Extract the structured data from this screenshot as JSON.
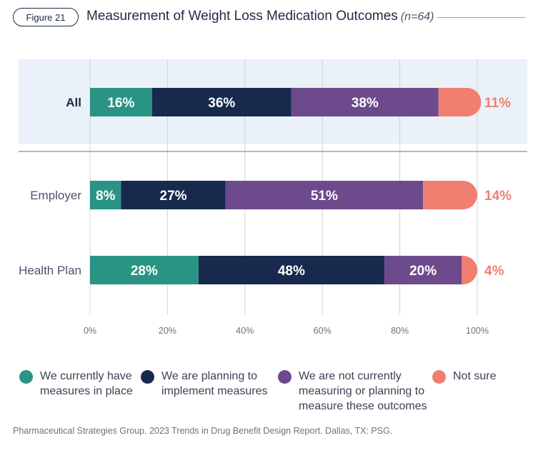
{
  "figure_label": "Figure 21",
  "title": "Measurement of Weight Loss Medication Outcomes",
  "subtitle_n": "(n=64)",
  "source": "Pharmaceutical Strategies Group. 2023 Trends in Drug Benefit Design Report. Dallas, TX: PSG.",
  "colors": {
    "measures_in_place": "#2a9484",
    "planning": "#172a4e",
    "not_measuring": "#6d4a8c",
    "not_sure": "#f07f6f",
    "highlight_band": "#eaf1f9"
  },
  "chart_data": {
    "type": "bar",
    "orientation": "horizontal",
    "stacked": true,
    "categories": [
      "All",
      "Employer",
      "Health Plan"
    ],
    "xlim": [
      0,
      100
    ],
    "x_ticks": [
      "0%",
      "20%",
      "40%",
      "60%",
      "80%",
      "100%"
    ],
    "series": [
      {
        "name": "We currently have measures in place",
        "color_key": "measures_in_place",
        "values": [
          16,
          8,
          28
        ],
        "labels": [
          "16%",
          "8%",
          "28%"
        ]
      },
      {
        "name": "We are planning to implement measures",
        "color_key": "planning",
        "values": [
          36,
          27,
          48
        ],
        "labels": [
          "36%",
          "27%",
          "48%"
        ]
      },
      {
        "name": "We are not currently measuring or planning to measure these outcomes",
        "color_key": "not_measuring",
        "values": [
          38,
          51,
          20
        ],
        "labels": [
          "38%",
          "51%",
          "20%"
        ]
      },
      {
        "name": "Not sure",
        "color_key": "not_sure",
        "values": [
          11,
          14,
          4
        ],
        "labels": [
          "11%",
          "14%",
          "4%"
        ]
      }
    ]
  },
  "legend": [
    {
      "lines": [
        "We currently have",
        "measures in place"
      ],
      "color_key": "measures_in_place"
    },
    {
      "lines": [
        "We are planning to",
        "implement measures"
      ],
      "color_key": "planning"
    },
    {
      "lines": [
        "We are not currently",
        "measuring or planning to",
        "measure these outcomes"
      ],
      "color_key": "not_measuring"
    },
    {
      "lines": [
        "Not sure"
      ],
      "color_key": "not_sure"
    }
  ]
}
